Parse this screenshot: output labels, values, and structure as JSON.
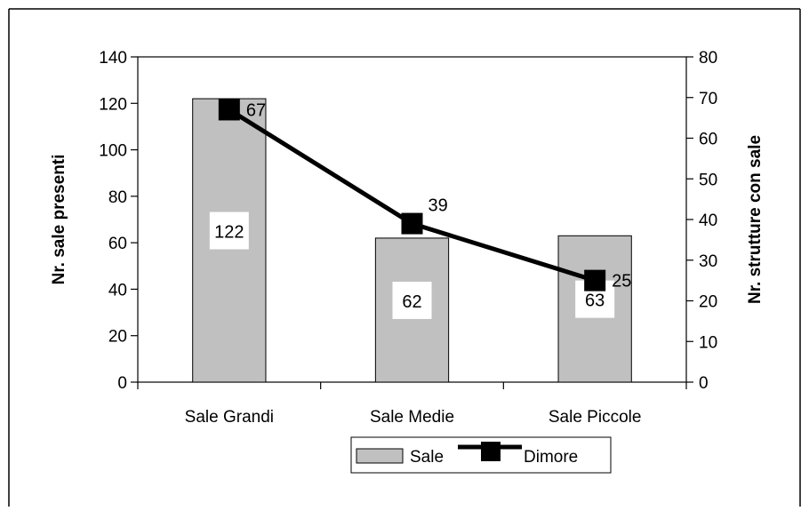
{
  "chart_data": {
    "type": "bar",
    "categories": [
      "Sale Grandi",
      "Sale Medie",
      "Sale Piccole"
    ],
    "series": [
      {
        "name": "Sale",
        "type": "bar",
        "axis": "left",
        "values": [
          122,
          62,
          63
        ],
        "color": "#c0c0c0"
      },
      {
        "name": "Dimore",
        "type": "line",
        "axis": "right",
        "values": [
          67,
          39,
          25
        ],
        "color": "#000000"
      }
    ],
    "ylabel": "Nr. sale presenti",
    "y2label": "Nr. strutture con sale",
    "ylim": [
      0,
      140
    ],
    "y2lim": [
      0,
      80
    ],
    "yticks": [
      "0",
      "20",
      "40",
      "60",
      "80",
      "100",
      "120",
      "140"
    ],
    "y2ticks": [
      "0",
      "10",
      "20",
      "30",
      "40",
      "50",
      "60",
      "70",
      "80"
    ],
    "grid": false,
    "legend_position": "bottom"
  }
}
